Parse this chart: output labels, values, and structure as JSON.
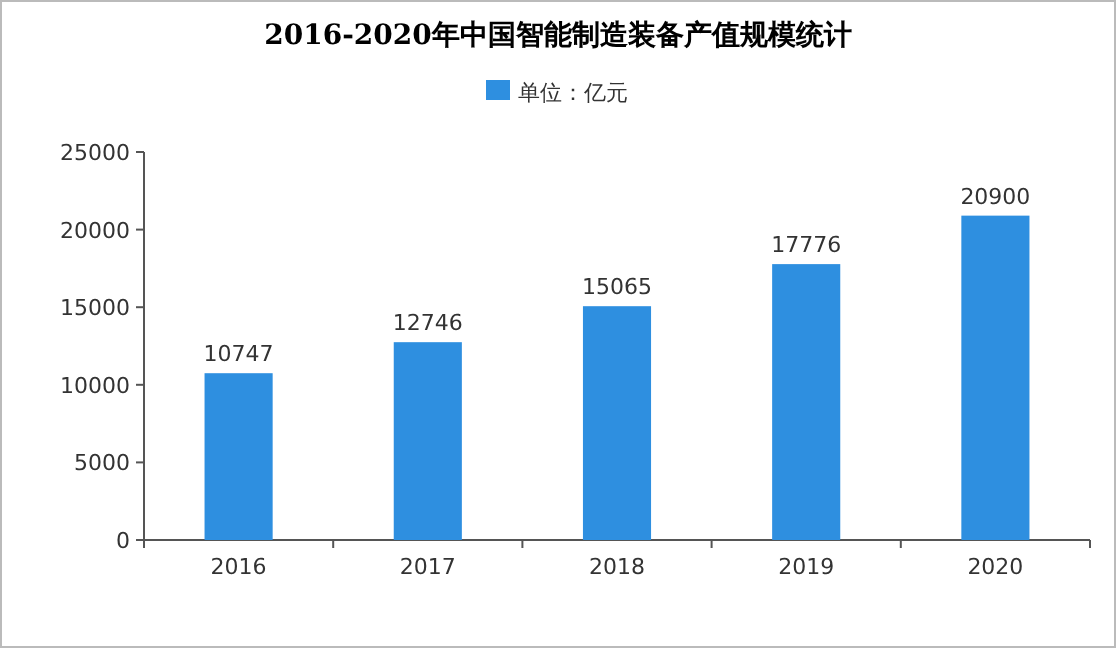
{
  "chart_data": {
    "type": "bar",
    "title": "2016-2020年中国智能制造装备产值规模统计",
    "categories": [
      "2016",
      "2017",
      "2018",
      "2019",
      "2020"
    ],
    "series": [
      {
        "name": "单位：亿元",
        "color": "#2e8fe0",
        "values": [
          10747,
          12746,
          15065,
          17776,
          20900
        ]
      }
    ],
    "ylim": [
      0,
      25000
    ],
    "yticks": [
      0,
      5000,
      10000,
      15000,
      20000,
      25000
    ],
    "data_labels": true,
    "grid": false,
    "legend": "top"
  }
}
